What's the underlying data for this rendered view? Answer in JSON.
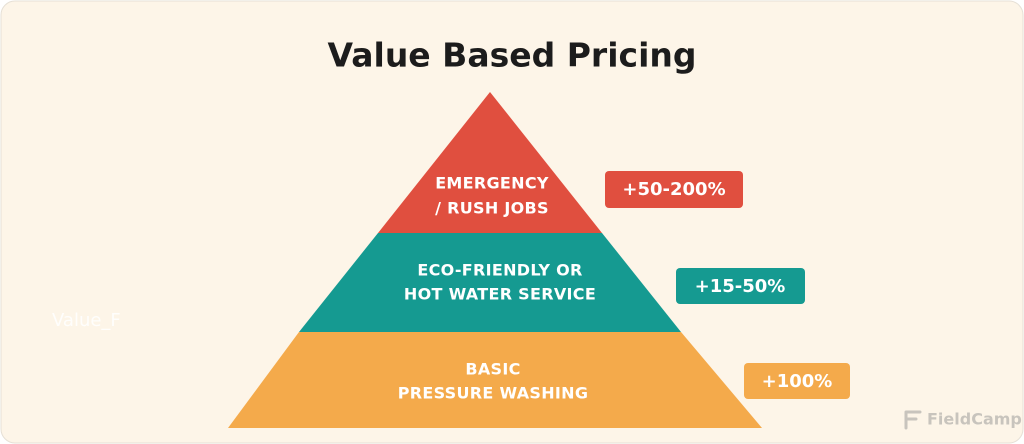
{
  "title": "Value Based Pricing",
  "tiers": [
    {
      "label": [
        "EMERGENCY",
        "/ RUSH JOBS"
      ],
      "badge": "+50-200%"
    },
    {
      "label": [
        "ECO-FRIENDLY OR",
        "HOT WATER SERVICE"
      ],
      "badge": "+15-50%"
    },
    {
      "label": [
        "BASIC",
        "PRESSURE WASHING"
      ],
      "badge": "+100%"
    }
  ],
  "watermark": "Value_F",
  "brand": "FieldCamp"
}
